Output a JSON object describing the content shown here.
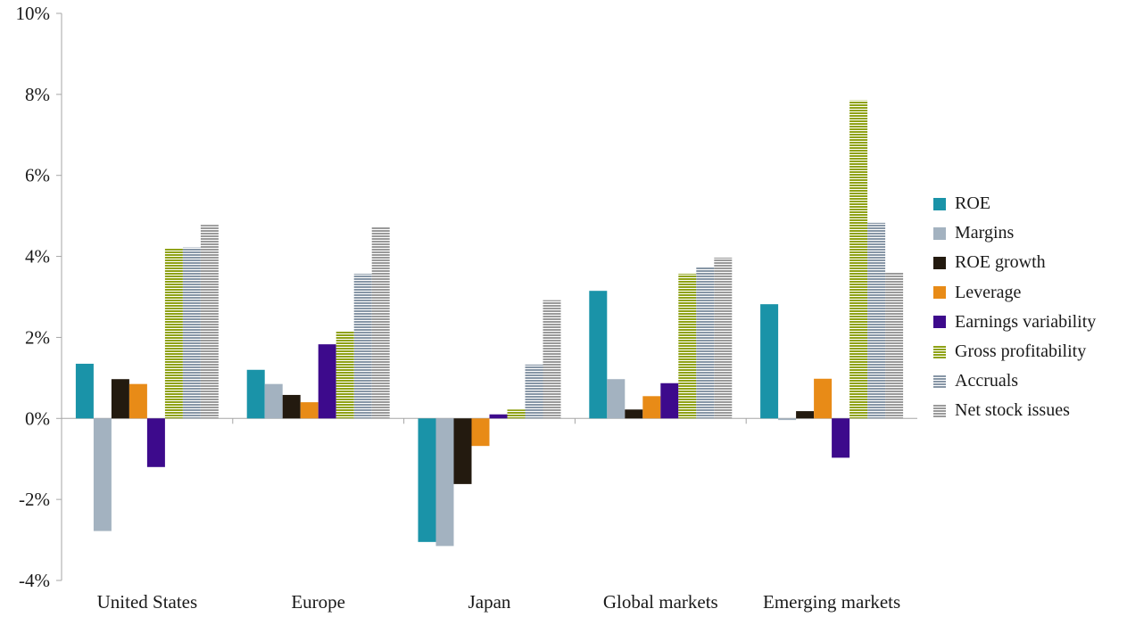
{
  "chart_data": {
    "type": "bar",
    "categories": [
      "United States",
      "Europe",
      "Japan",
      "Global markets",
      "Emerging markets"
    ],
    "series": [
      {
        "name": "ROE",
        "color": "#1a93a8",
        "pattern": "solid",
        "values": [
          1.35,
          1.2,
          -3.05,
          3.15,
          2.82
        ]
      },
      {
        "name": "Margins",
        "color": "#a3b2c0",
        "pattern": "solid",
        "values": [
          -2.78,
          0.85,
          -3.15,
          0.97,
          -0.04
        ]
      },
      {
        "name": "ROE growth",
        "color": "#231a0f",
        "pattern": "solid",
        "values": [
          0.97,
          0.58,
          -1.62,
          0.22,
          0.18
        ]
      },
      {
        "name": "Leverage",
        "color": "#e88b17",
        "pattern": "solid",
        "values": [
          0.85,
          0.4,
          -0.68,
          0.55,
          0.98
        ]
      },
      {
        "name": "Earnings variability",
        "color": "#3d0a8c",
        "pattern": "solid",
        "values": [
          -1.2,
          1.83,
          0.1,
          0.87,
          -0.97
        ]
      },
      {
        "name": "Gross profitability",
        "color": "#8fa215",
        "pattern": "hstripe",
        "values": [
          4.2,
          2.15,
          0.22,
          3.57,
          7.85
        ]
      },
      {
        "name": "Accruals",
        "color": "#8796a6",
        "pattern": "hstripe",
        "values": [
          4.22,
          3.57,
          1.33,
          3.73,
          4.83
        ]
      },
      {
        "name": "Net stock issues",
        "color": "#9a9a9a",
        "pattern": "hstripe",
        "values": [
          4.78,
          4.72,
          2.92,
          3.97,
          3.6
        ]
      }
    ],
    "ylim": [
      -4,
      10
    ],
    "yticks": [
      "-4%",
      "-2%",
      "0%",
      "2%",
      "4%",
      "6%",
      "8%",
      "10%"
    ],
    "ytick_values": [
      -4,
      -2,
      0,
      2,
      4,
      6,
      8,
      10
    ],
    "grid": false,
    "legend": "right",
    "title": "",
    "xlabel": "",
    "ylabel": ""
  }
}
